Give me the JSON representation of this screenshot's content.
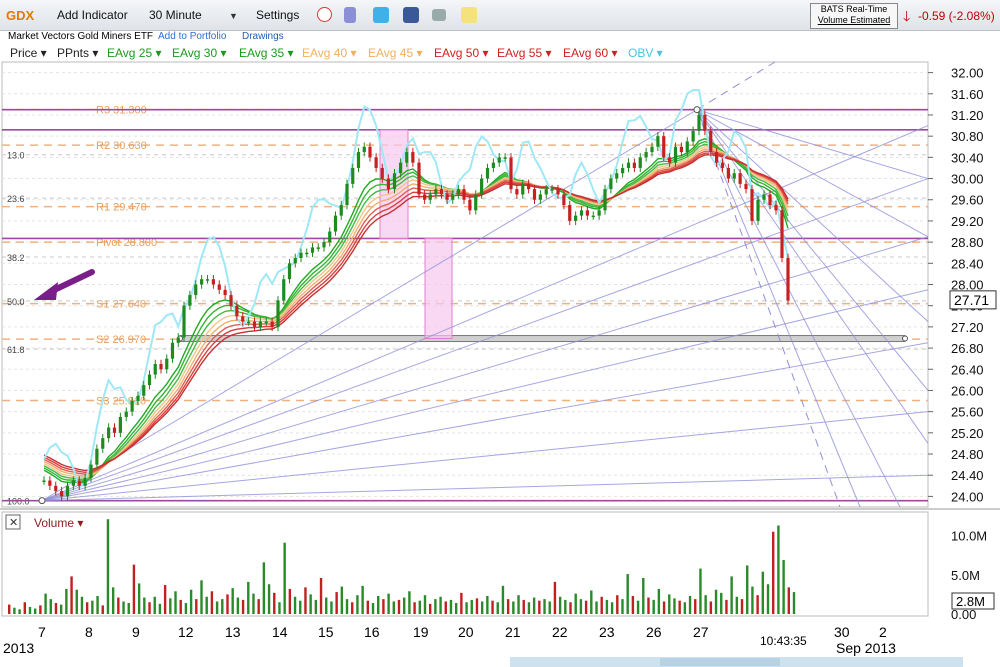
{
  "toolbar": {
    "ticker": "GDX",
    "add_indicator": "Add Indicator",
    "interval": "30 Minute",
    "settings": "Settings",
    "company": "Market Vectors Gold Miners ETF",
    "add_portfolio": "Add to Portfolio",
    "drawings": "Drawings",
    "realtime_line1": "BATS Real-Time",
    "realtime_line2": "Volume Estimated",
    "change": "-0.59 (-2.08%)",
    "icons": [
      "alarm-clock-icon",
      "book-icon",
      "twitter-icon",
      "facebook-icon",
      "camera-icon",
      "note-icon"
    ]
  },
  "indicators": [
    {
      "label": "Price",
      "color": "#222222"
    },
    {
      "label": "PPnts",
      "color": "#222222"
    },
    {
      "label": "EAvg 25",
      "color": "#1a9a1a"
    },
    {
      "label": "EAvg 30",
      "color": "#1a9a1a"
    },
    {
      "label": "EAvg 35",
      "color": "#1a9a1a"
    },
    {
      "label": "EAvg 40",
      "color": "#f0b060"
    },
    {
      "label": "EAvg 45",
      "color": "#f0b060"
    },
    {
      "label": "EAvg 50",
      "color": "#d02020"
    },
    {
      "label": "EAvg 55",
      "color": "#d02020"
    },
    {
      "label": "EAvg 60",
      "color": "#d02020"
    },
    {
      "label": "OBV",
      "color": "#40c8e0"
    }
  ],
  "chart_data": {
    "type": "line",
    "y_ticks": [
      "32.00",
      "31.60",
      "31.20",
      "30.80",
      "30.40",
      "30.00",
      "29.60",
      "29.20",
      "28.80",
      "28.40",
      "28.00",
      "27.60",
      "27.20",
      "26.80",
      "26.40",
      "26.00",
      "25.60",
      "25.20",
      "24.80",
      "24.40",
      "24.00"
    ],
    "y_range": [
      23.8,
      32.2
    ],
    "last_price": "27.71",
    "x_labels": [
      "7",
      "8",
      "9",
      "12",
      "13",
      "14",
      "15",
      "16",
      "19",
      "20",
      "21",
      "22",
      "23",
      "26",
      "27",
      "30",
      "2"
    ],
    "year_left": "2013",
    "month_right": "Sep 2013",
    "time_label": "10:43:35",
    "pivots": [
      {
        "label": "R3 31.300",
        "value": 31.3
      },
      {
        "label": "R2 30.630",
        "value": 30.63
      },
      {
        "label": "R1 29.470",
        "value": 29.47
      },
      {
        "label": "Pivot 28.800",
        "value": 28.8
      },
      {
        "label": "S1 27.640",
        "value": 27.64
      },
      {
        "label": "S2 26.970",
        "value": 26.97
      },
      {
        "label": "S3 25.810",
        "value": 25.81
      }
    ],
    "fib_labels": [
      "13.0",
      "23.6",
      "38.2",
      "50.0",
      "61.8",
      "100.0"
    ],
    "fib_values": [
      30.45,
      29.63,
      28.52,
      27.69,
      26.78,
      23.92
    ],
    "horizontal_lines": [
      31.3,
      30.92,
      28.87,
      23.92
    ],
    "support_bar": {
      "value": 26.98
    },
    "price_series": [
      {
        "day": "7",
        "values": [
          24.3,
          24.2,
          24.1,
          24.0,
          24.2,
          24.3,
          24.2,
          24.35
        ]
      },
      {
        "day": "8",
        "values": [
          24.6,
          24.9,
          25.1,
          25.3,
          25.2,
          25.5,
          25.6,
          25.8
        ]
      },
      {
        "day": "9",
        "values": [
          25.9,
          26.1,
          26.3,
          26.5,
          26.4,
          26.6,
          26.9,
          27.0
        ]
      },
      {
        "day": "12",
        "values": [
          27.6,
          27.8,
          28.0,
          28.1,
          28.1,
          28.0,
          27.9,
          27.8
        ]
      },
      {
        "day": "13",
        "values": [
          27.6,
          27.4,
          27.3,
          27.3,
          27.2,
          27.3,
          27.3,
          27.2
        ]
      },
      {
        "day": "14",
        "values": [
          27.7,
          28.1,
          28.4,
          28.5,
          28.6,
          28.6,
          28.7,
          28.7
        ]
      },
      {
        "day": "15",
        "values": [
          28.8,
          29.0,
          29.3,
          29.5,
          29.9,
          30.2,
          30.5,
          30.6
        ]
      },
      {
        "day": "16",
        "values": [
          30.4,
          30.2,
          30.0,
          29.8,
          30.1,
          30.3,
          30.5,
          30.3
        ]
      },
      {
        "day": "19",
        "values": [
          29.7,
          29.6,
          29.7,
          29.8,
          29.7,
          29.6,
          29.7,
          29.8
        ]
      },
      {
        "day": "20",
        "values": [
          29.6,
          29.4,
          29.7,
          30.0,
          30.2,
          30.3,
          30.4,
          30.4
        ]
      },
      {
        "day": "21",
        "values": [
          29.8,
          29.7,
          29.9,
          29.8,
          29.6,
          29.7,
          29.8,
          29.8
        ]
      },
      {
        "day": "22",
        "values": [
          29.7,
          29.5,
          29.2,
          29.3,
          29.4,
          29.3,
          29.3,
          29.4
        ]
      },
      {
        "day": "23",
        "values": [
          29.8,
          30.0,
          30.1,
          30.2,
          30.3,
          30.2,
          30.4,
          30.5
        ]
      },
      {
        "day": "26",
        "values": [
          30.6,
          30.8,
          30.4,
          30.3,
          30.6,
          30.5,
          30.7,
          30.9
        ]
      },
      {
        "day": "27",
        "values": [
          31.2,
          30.9,
          30.5,
          30.3,
          30.2,
          30.0,
          30.1,
          29.9
        ]
      },
      {
        "day": "28",
        "values": [
          29.8,
          29.2,
          29.6,
          29.7,
          29.5,
          29.4,
          28.5,
          27.7
        ]
      }
    ],
    "volume": {
      "label": "Volume",
      "y_ticks": [
        "10.0M",
        "5.0M",
        "0.00"
      ],
      "current": "2.8M",
      "max": 12.0,
      "values": [
        1.2,
        0.8,
        0.6,
        1.5,
        0.9,
        0.7,
        1.1,
        2.6,
        1.9,
        1.4,
        1.2,
        3.2,
        4.8,
        3.1,
        2.2,
        1.5,
        1.7,
        2.3,
        1.1,
        12.1,
        3.4,
        2.1,
        1.6,
        1.4,
        6.3,
        3.9,
        2.1,
        1.5,
        2.2,
        1.3,
        3.7,
        2.0,
        2.9,
        1.8,
        1.4,
        3.1,
        1.9,
        4.3,
        2.2,
        2.9,
        1.6,
        1.9,
        2.5,
        3.3,
        2.1,
        1.8,
        4.1,
        2.6,
        1.9,
        6.6,
        3.8,
        2.7,
        1.5,
        9.1,
        3.2,
        2.2,
        1.7,
        3.4,
        2.5,
        1.8,
        4.6,
        2.1,
        1.6,
        2.8,
        3.5,
        1.9,
        1.5,
        2.4,
        3.6,
        1.7,
        1.4,
        2.3,
        1.9,
        2.6,
        1.6,
        1.8,
        2.1,
        2.9,
        1.5,
        1.7,
        2.4,
        1.3,
        1.9,
        2.2,
        1.6,
        1.8,
        1.4,
        2.7,
        1.5,
        1.8,
        2.0,
        1.6,
        2.3,
        1.7,
        1.5,
        3.6,
        1.9,
        1.6,
        2.4,
        1.8,
        1.5,
        2.1,
        1.7,
        1.9,
        1.6,
        4.1,
        2.2,
        1.8,
        1.5,
        2.6,
        1.9,
        1.7,
        3.0,
        1.6,
        2.2,
        1.8,
        1.5,
        2.4,
        1.9,
        5.1,
        2.3,
        1.7,
        4.6,
        2.1,
        1.8,
        3.2,
        1.6,
        2.5,
        2.0,
        1.7,
        1.5,
        2.3,
        1.9,
        5.8,
        2.4,
        1.6,
        3.1,
        2.7,
        1.8,
        4.8,
        2.2,
        1.9,
        6.2,
        3.5,
        2.4,
        5.4,
        3.8,
        10.5,
        11.3,
        6.9,
        3.4,
        2.8
      ]
    }
  }
}
